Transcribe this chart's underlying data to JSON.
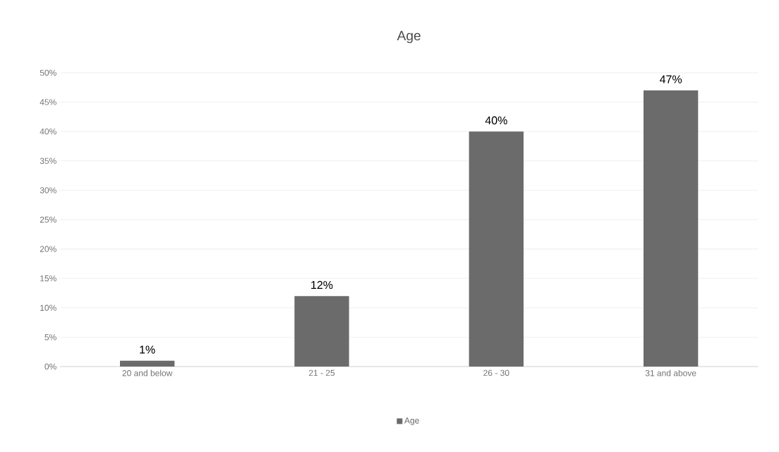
{
  "chart_data": {
    "type": "bar",
    "title": "Age",
    "categories": [
      "20 and below",
      "21 - 25",
      "26 - 30",
      "31 and above"
    ],
    "series": [
      {
        "name": "Age",
        "color": "#6b6b6b",
        "values": [
          1,
          12,
          40,
          47
        ],
        "value_labels": [
          "1%",
          "12%",
          "40%",
          "47%"
        ]
      }
    ],
    "ylim": [
      0,
      50
    ],
    "yticks": [
      {
        "value": 0,
        "label": "0%"
      },
      {
        "value": 5,
        "label": "5%"
      },
      {
        "value": 10,
        "label": "10%"
      },
      {
        "value": 15,
        "label": "15%"
      },
      {
        "value": 20,
        "label": "20%"
      },
      {
        "value": 25,
        "label": "25%"
      },
      {
        "value": 30,
        "label": "30%"
      },
      {
        "value": 35,
        "label": "35%"
      },
      {
        "value": 40,
        "label": "40%"
      },
      {
        "value": 45,
        "label": "45%"
      },
      {
        "value": 50,
        "label": "50%"
      }
    ],
    "grid": "y",
    "legend": "bottom"
  }
}
